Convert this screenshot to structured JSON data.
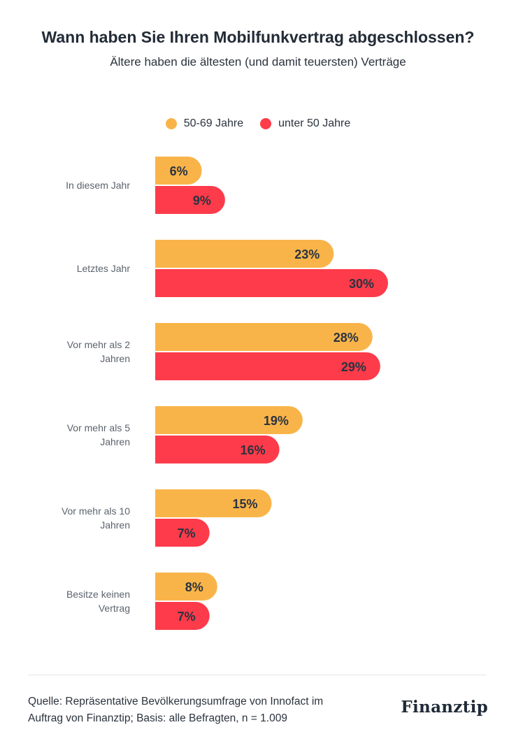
{
  "title": "Wann haben Sie Ihren Mobilfunkvertrag abgeschlossen?",
  "subtitle": "Ältere haben die ältesten (und damit teuersten) Verträge",
  "source": {
    "line1": "Quelle: Repräsentative Bevölkerungsumfrage von Innofact im",
    "line2": "Auftrag von Finanztip; Basis: alle Befragten, n = 1.009"
  },
  "brand": "Finanztip",
  "colors": {
    "series_a": "#f9b449",
    "series_b": "#fd3b4a"
  },
  "chart_data": {
    "type": "bar",
    "orientation": "horizontal",
    "categories": [
      [
        "In diesem Jahr"
      ],
      [
        "Letztes Jahr"
      ],
      [
        "Vor mehr als 2",
        "Jahren"
      ],
      [
        "Vor mehr als 5",
        "Jahren"
      ],
      [
        "Vor mehr als 10",
        "Jahren"
      ],
      [
        "Besitze keinen",
        "Vertrag"
      ]
    ],
    "series": [
      {
        "name": "50-69 Jahre",
        "values": [
          6,
          23,
          28,
          19,
          15,
          8
        ],
        "labels": [
          "6%",
          "23%",
          "28%",
          "19%",
          "15%",
          "8%"
        ],
        "color": "#f9b449"
      },
      {
        "name": "unter 50 Jahre",
        "values": [
          9,
          30,
          29,
          16,
          7,
          7
        ],
        "labels": [
          "9%",
          "30%",
          "29%",
          "16%",
          "7%",
          "7%"
        ],
        "color": "#fd3b4a"
      }
    ],
    "unit": "%",
    "legend_position": "top-center",
    "grid": false
  }
}
